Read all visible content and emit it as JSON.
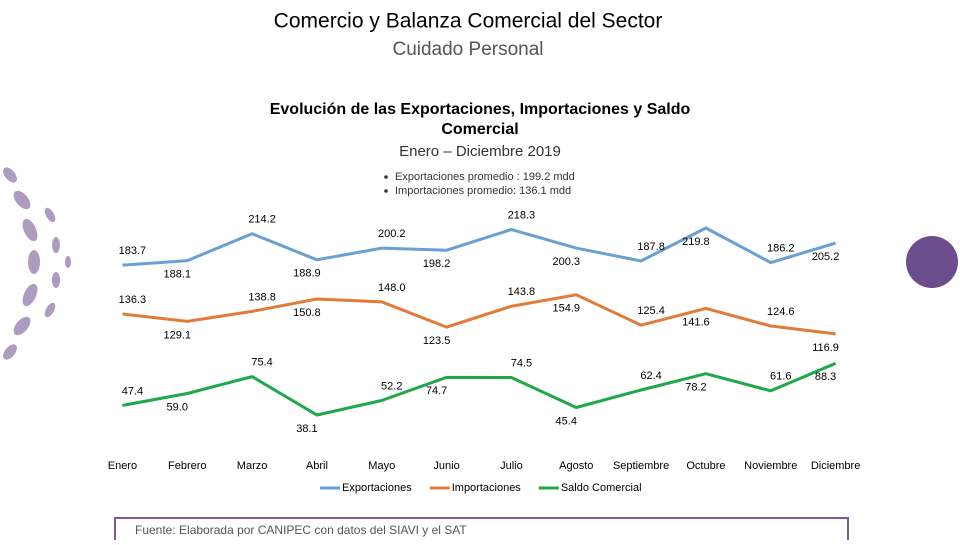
{
  "header": {
    "title": "Comercio y Balanza Comercial del Sector",
    "subtitle": "Cuidado Personal"
  },
  "chart_data": {
    "type": "line",
    "title": "Evolución de las Exportaciones, Importaciones y Saldo Comercial",
    "subtitle": "Enero – Diciembre 2019",
    "notes": [
      "Exportaciones promedio :  199.2 mdd",
      "Importaciones promedio:  136.1 mdd"
    ],
    "categories": [
      "Enero",
      "Febrero",
      "Marzo",
      "Abril",
      "Mayo",
      "Junio",
      "Julio",
      "Agosto",
      "Septiembre",
      "Octubre",
      "Noviembre",
      "Diciembre"
    ],
    "series": [
      {
        "name": "Exportaciones",
        "color": "#6a9fd4",
        "values": [
          183.7,
          188.1,
          214.2,
          188.9,
          200.2,
          198.2,
          218.3,
          200.3,
          187.8,
          219.8,
          186.2,
          205.2
        ],
        "value_labels": [
          "183.7",
          "188.1",
          "214.2",
          "188.9",
          "200.2",
          "198.2",
          "218.3",
          "200.3",
          "187.8",
          "219.8",
          "186.2",
          "205.2"
        ]
      },
      {
        "name": "Importaciones",
        "color": "#e07b39",
        "values": [
          136.3,
          129.1,
          138.8,
          150.8,
          148.0,
          123.5,
          143.8,
          154.9,
          125.4,
          141.6,
          124.6,
          116.9
        ],
        "value_labels": [
          "136.3",
          "129.1",
          "138.8",
          "150.8",
          "148.0",
          "123.5",
          "143.8",
          "154.9",
          "125.4",
          "141.6",
          "124.6",
          "116.9"
        ]
      },
      {
        "name": "Saldo Comercial",
        "color": "#1ea84a",
        "values": [
          47.4,
          59.0,
          75.4,
          38.1,
          52.2,
          74.7,
          74.5,
          45.4,
          62.4,
          78.2,
          61.6,
          88.3
        ],
        "value_labels": [
          "47.4",
          "59.0",
          "75.4",
          "38.1",
          "52.2",
          "74.7",
          "74.5",
          "45.4",
          "62.4",
          "78.2",
          "61.6",
          "88.3"
        ]
      }
    ],
    "legend": "bottom"
  },
  "footer": {
    "source": "Fuente: Elaborada por CANIPEC con datos del SIAVI y el SAT"
  }
}
